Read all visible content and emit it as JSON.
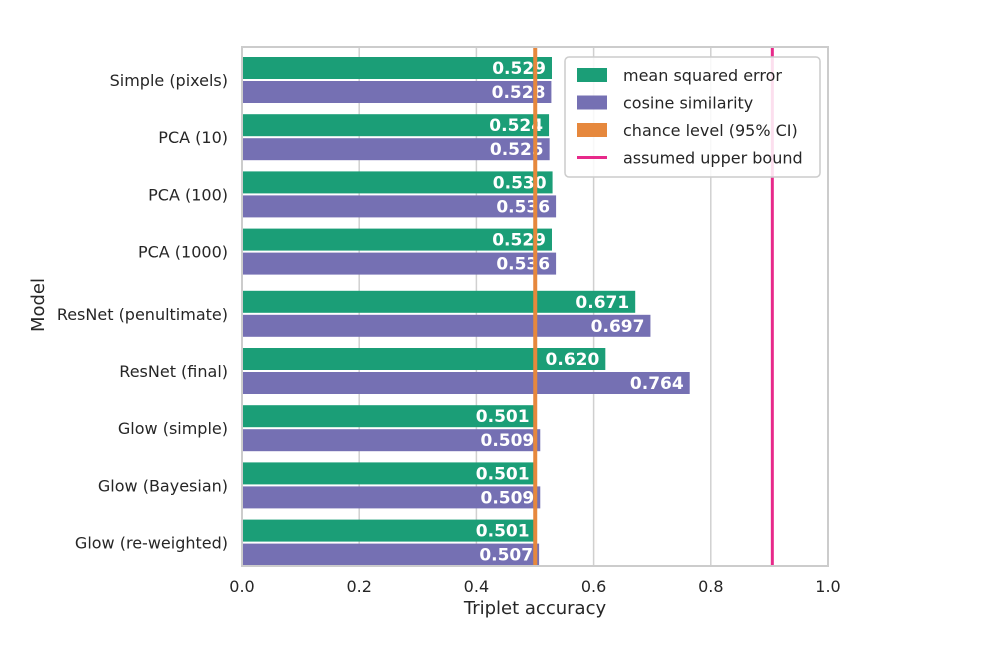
{
  "chart_data": {
    "type": "bar",
    "orientation": "horizontal",
    "categories": [
      "Simple (pixels)",
      "PCA (10)",
      "PCA (100)",
      "PCA (1000)",
      "ResNet (penultimate)",
      "ResNet (final)",
      "Glow (simple)",
      "Glow (Bayesian)",
      "Glow (re-weighted)"
    ],
    "series": [
      {
        "name": "mean squared error",
        "color": "#1b9e77",
        "values": [
          0.529,
          0.524,
          0.53,
          0.529,
          0.671,
          0.62,
          0.501,
          0.501,
          0.501
        ],
        "labels": [
          "0.529",
          "0.524",
          "0.530",
          "0.529",
          "0.671",
          "0.620",
          "0.501",
          "0.501",
          "0.501"
        ]
      },
      {
        "name": "cosine similarity",
        "color": "#7570b3",
        "values": [
          0.528,
          0.525,
          0.536,
          0.536,
          0.697,
          0.764,
          0.509,
          0.509,
          0.507
        ],
        "labels": [
          "0.528",
          "0.525",
          "0.536",
          "0.536",
          "0.697",
          "0.764",
          "0.509",
          "0.509",
          "0.507"
        ]
      }
    ],
    "reference_lines": [
      {
        "name": "chance level (95% CI)",
        "color": "#e6883d",
        "range": [
          0.497,
          0.503
        ]
      },
      {
        "name": "assumed upper bound",
        "color": "#e7298a",
        "value": 0.905
      }
    ],
    "xlabel": "Triplet accuracy",
    "ylabel": "Model",
    "xlim": [
      0.0,
      1.0
    ],
    "xticks": [
      "0.0",
      "0.2",
      "0.4",
      "0.6",
      "0.8",
      "1.0"
    ],
    "grid": true,
    "legend": [
      "mean squared error",
      "cosine similarity",
      "chance level (95% CI)",
      "assumed upper bound"
    ],
    "legend_position": "top-right"
  }
}
